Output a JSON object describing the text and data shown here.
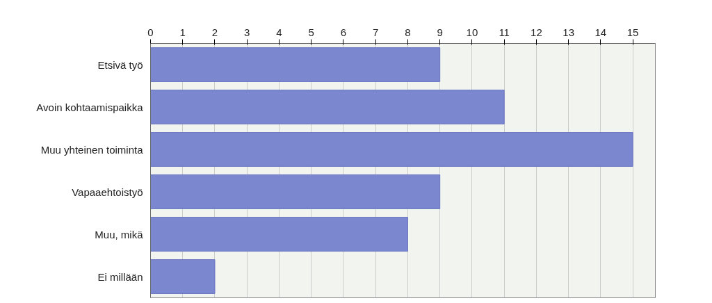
{
  "chart_data": {
    "type": "bar",
    "orientation": "horizontal",
    "categories": [
      "Etsivä työ",
      "Avoin kohtaamispaikka",
      "Muu yhteinen toiminta",
      "Vapaaehtoistyö",
      "Muu, mikä",
      "Ei millään"
    ],
    "values": [
      9,
      11,
      15,
      9,
      8,
      2
    ],
    "color": "#7b88d0",
    "xlim": [
      0,
      15.7
    ],
    "xticks": [
      0,
      1,
      2,
      3,
      4,
      5,
      6,
      7,
      8,
      9,
      10,
      11,
      12,
      13,
      14,
      15
    ],
    "grid": "x"
  }
}
